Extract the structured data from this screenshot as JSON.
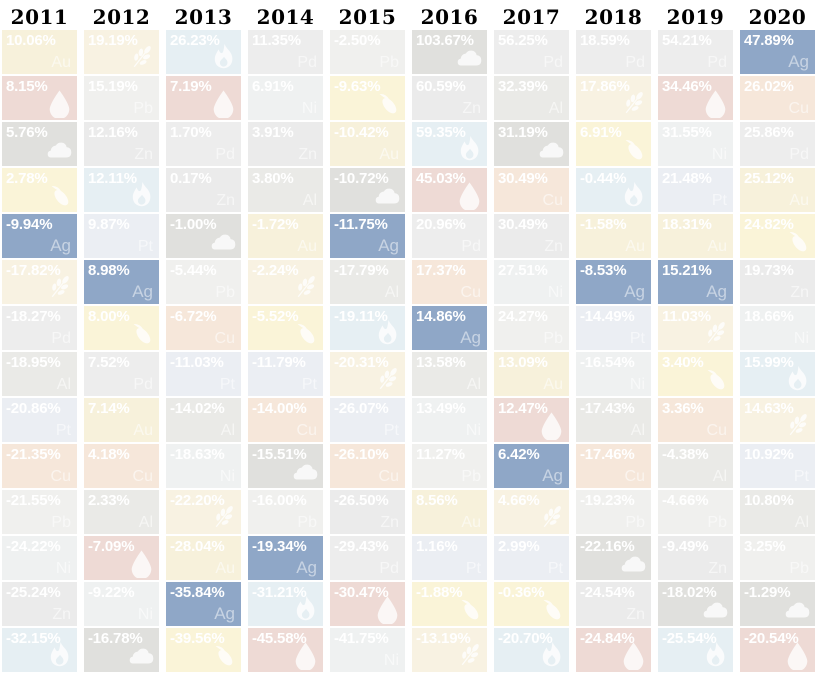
{
  "chart_data": {
    "type": "heatmap",
    "description": "Periodic table of annual commodity returns, ranked best to worst within each year column; silver (Ag) cells highlighted",
    "years": [
      "2011",
      "2012",
      "2013",
      "2014",
      "2015",
      "2016",
      "2017",
      "2018",
      "2019",
      "2020"
    ],
    "highlight_commodity": "silver",
    "highlight_color": "#8fa7c7",
    "commodity_colors": {
      "gold": "#f7f1db",
      "silver": "#8fa7c7",
      "copper": "#f6e7da",
      "aluminum": "#eaeae7",
      "zinc": "#ebebeb",
      "nickel": "#eff1f1",
      "lead": "#f0f0ee",
      "palladium": "#ededed",
      "platinum": "#ebeef3",
      "oil": "#eedad5",
      "natural_gas": "#e6eff3",
      "corn": "#faf4d8",
      "wheat": "#f8f2e2",
      "coal": "#e0e0dd"
    },
    "symbols": {
      "gold": "Au",
      "silver": "Ag",
      "copper": "Cu",
      "aluminum": "Al",
      "zinc": "Zn",
      "nickel": "Ni",
      "lead": "Pb",
      "palladium": "Pd",
      "platinum": "Pt"
    },
    "icons": {
      "oil": "oil-drop-icon",
      "natural_gas": "flame-icon",
      "corn": "corn-icon",
      "wheat": "wheat-icon",
      "coal": "coal-icon"
    },
    "columns": [
      {
        "year": "2011",
        "cells": [
          {
            "value": "10.06%",
            "commodity": "gold"
          },
          {
            "value": "8.15%",
            "commodity": "oil"
          },
          {
            "value": "5.76%",
            "commodity": "coal"
          },
          {
            "value": "2.78%",
            "commodity": "corn"
          },
          {
            "value": "-9.94%",
            "commodity": "silver"
          },
          {
            "value": "-17.82%",
            "commodity": "wheat"
          },
          {
            "value": "-18.27%",
            "commodity": "palladium"
          },
          {
            "value": "-18.95%",
            "commodity": "aluminum"
          },
          {
            "value": "-20.86%",
            "commodity": "platinum"
          },
          {
            "value": "-21.35%",
            "commodity": "copper"
          },
          {
            "value": "-21.55%",
            "commodity": "lead"
          },
          {
            "value": "-24.22%",
            "commodity": "nickel"
          },
          {
            "value": "-25.24%",
            "commodity": "zinc"
          },
          {
            "value": "-32.15%",
            "commodity": "natural_gas"
          }
        ]
      },
      {
        "year": "2012",
        "cells": [
          {
            "value": "19.19%",
            "commodity": "wheat"
          },
          {
            "value": "15.19%",
            "commodity": "lead"
          },
          {
            "value": "12.16%",
            "commodity": "zinc"
          },
          {
            "value": "12.11%",
            "commodity": "natural_gas"
          },
          {
            "value": "9.87%",
            "commodity": "platinum"
          },
          {
            "value": "8.98%",
            "commodity": "silver"
          },
          {
            "value": "8.00%",
            "commodity": "corn"
          },
          {
            "value": "7.52%",
            "commodity": "palladium"
          },
          {
            "value": "7.14%",
            "commodity": "gold"
          },
          {
            "value": "4.18%",
            "commodity": "copper"
          },
          {
            "value": "2.33%",
            "commodity": "aluminum"
          },
          {
            "value": "-7.09%",
            "commodity": "oil"
          },
          {
            "value": "-9.22%",
            "commodity": "nickel"
          },
          {
            "value": "-16.78%",
            "commodity": "coal"
          }
        ]
      },
      {
        "year": "2013",
        "cells": [
          {
            "value": "26.23%",
            "commodity": "natural_gas"
          },
          {
            "value": "7.19%",
            "commodity": "oil"
          },
          {
            "value": "1.70%",
            "commodity": "palladium"
          },
          {
            "value": "0.17%",
            "commodity": "zinc"
          },
          {
            "value": "-1.00%",
            "commodity": "coal"
          },
          {
            "value": "-5.44%",
            "commodity": "lead"
          },
          {
            "value": "-6.72%",
            "commodity": "copper"
          },
          {
            "value": "-11.03%",
            "commodity": "platinum"
          },
          {
            "value": "-14.02%",
            "commodity": "aluminum"
          },
          {
            "value": "-18.63%",
            "commodity": "nickel"
          },
          {
            "value": "-22.20%",
            "commodity": "wheat"
          },
          {
            "value": "-28.04%",
            "commodity": "gold"
          },
          {
            "value": "-35.84%",
            "commodity": "silver"
          },
          {
            "value": "-39.56%",
            "commodity": "corn"
          }
        ]
      },
      {
        "year": "2014",
        "cells": [
          {
            "value": "11.35%",
            "commodity": "palladium"
          },
          {
            "value": "6.91%",
            "commodity": "nickel"
          },
          {
            "value": "3.91%",
            "commodity": "zinc"
          },
          {
            "value": "3.80%",
            "commodity": "aluminum"
          },
          {
            "value": "-1.72%",
            "commodity": "gold"
          },
          {
            "value": "-2.24%",
            "commodity": "wheat"
          },
          {
            "value": "-5.52%",
            "commodity": "corn"
          },
          {
            "value": "-11.79%",
            "commodity": "platinum"
          },
          {
            "value": "-14.00%",
            "commodity": "copper"
          },
          {
            "value": "-15.51%",
            "commodity": "coal"
          },
          {
            "value": "-16.00%",
            "commodity": "lead"
          },
          {
            "value": "-19.34%",
            "commodity": "silver"
          },
          {
            "value": "-31.21%",
            "commodity": "natural_gas"
          },
          {
            "value": "-45.58%",
            "commodity": "oil"
          }
        ]
      },
      {
        "year": "2015",
        "cells": [
          {
            "value": "-2.50%",
            "commodity": "lead"
          },
          {
            "value": "-9.63%",
            "commodity": "corn"
          },
          {
            "value": "-10.42%",
            "commodity": "gold"
          },
          {
            "value": "-10.72%",
            "commodity": "coal"
          },
          {
            "value": "-11.75%",
            "commodity": "silver"
          },
          {
            "value": "-17.79%",
            "commodity": "aluminum"
          },
          {
            "value": "-19.11%",
            "commodity": "natural_gas"
          },
          {
            "value": "-20.31%",
            "commodity": "wheat"
          },
          {
            "value": "-26.07%",
            "commodity": "platinum"
          },
          {
            "value": "-26.10%",
            "commodity": "copper"
          },
          {
            "value": "-26.50%",
            "commodity": "zinc"
          },
          {
            "value": "-29.43%",
            "commodity": "palladium"
          },
          {
            "value": "-30.47%",
            "commodity": "oil"
          },
          {
            "value": "-41.75%",
            "commodity": "nickel"
          }
        ]
      },
      {
        "year": "2016",
        "cells": [
          {
            "value": "103.67%",
            "commodity": "coal"
          },
          {
            "value": "60.59%",
            "commodity": "zinc"
          },
          {
            "value": "59.35%",
            "commodity": "natural_gas"
          },
          {
            "value": "45.03%",
            "commodity": "oil"
          },
          {
            "value": "20.96%",
            "commodity": "palladium"
          },
          {
            "value": "17.37%",
            "commodity": "copper"
          },
          {
            "value": "14.86%",
            "commodity": "silver"
          },
          {
            "value": "13.58%",
            "commodity": "aluminum"
          },
          {
            "value": "13.49%",
            "commodity": "nickel"
          },
          {
            "value": "11.27%",
            "commodity": "lead"
          },
          {
            "value": "8.56%",
            "commodity": "gold"
          },
          {
            "value": "1.16%",
            "commodity": "platinum"
          },
          {
            "value": "-1.88%",
            "commodity": "corn"
          },
          {
            "value": "-13.19%",
            "commodity": "wheat"
          }
        ]
      },
      {
        "year": "2017",
        "cells": [
          {
            "value": "56.25%",
            "commodity": "palladium"
          },
          {
            "value": "32.39%",
            "commodity": "aluminum"
          },
          {
            "value": "31.19%",
            "commodity": "coal"
          },
          {
            "value": "30.49%",
            "commodity": "copper"
          },
          {
            "value": "30.49%",
            "commodity": "zinc"
          },
          {
            "value": "27.51%",
            "commodity": "nickel"
          },
          {
            "value": "24.27%",
            "commodity": "lead"
          },
          {
            "value": "13.09%",
            "commodity": "gold"
          },
          {
            "value": "12.47%",
            "commodity": "oil"
          },
          {
            "value": "6.42%",
            "commodity": "silver"
          },
          {
            "value": "4.66%",
            "commodity": "wheat"
          },
          {
            "value": "2.99%",
            "commodity": "platinum"
          },
          {
            "value": "-0.36%",
            "commodity": "corn"
          },
          {
            "value": "-20.70%",
            "commodity": "natural_gas"
          }
        ]
      },
      {
        "year": "2018",
        "cells": [
          {
            "value": "18.59%",
            "commodity": "palladium"
          },
          {
            "value": "17.86%",
            "commodity": "wheat"
          },
          {
            "value": "6.91%",
            "commodity": "corn"
          },
          {
            "value": "-0.44%",
            "commodity": "natural_gas"
          },
          {
            "value": "-1.58%",
            "commodity": "gold"
          },
          {
            "value": "-8.53%",
            "commodity": "silver"
          },
          {
            "value": "-14.49%",
            "commodity": "platinum"
          },
          {
            "value": "-16.54%",
            "commodity": "nickel"
          },
          {
            "value": "-17.43%",
            "commodity": "aluminum"
          },
          {
            "value": "-17.46%",
            "commodity": "copper"
          },
          {
            "value": "-19.23%",
            "commodity": "lead"
          },
          {
            "value": "-22.16%",
            "commodity": "coal"
          },
          {
            "value": "-24.54%",
            "commodity": "zinc"
          },
          {
            "value": "-24.84%",
            "commodity": "oil"
          }
        ]
      },
      {
        "year": "2019",
        "cells": [
          {
            "value": "54.21%",
            "commodity": "palladium"
          },
          {
            "value": "34.46%",
            "commodity": "oil"
          },
          {
            "value": "31.55%",
            "commodity": "nickel"
          },
          {
            "value": "21.48%",
            "commodity": "platinum"
          },
          {
            "value": "18.31%",
            "commodity": "gold"
          },
          {
            "value": "15.21%",
            "commodity": "silver"
          },
          {
            "value": "11.03%",
            "commodity": "wheat"
          },
          {
            "value": "3.40%",
            "commodity": "corn"
          },
          {
            "value": "3.36%",
            "commodity": "copper"
          },
          {
            "value": "-4.38%",
            "commodity": "aluminum"
          },
          {
            "value": "-4.66%",
            "commodity": "lead"
          },
          {
            "value": "-9.49%",
            "commodity": "zinc"
          },
          {
            "value": "-18.02%",
            "commodity": "coal"
          },
          {
            "value": "-25.54%",
            "commodity": "natural_gas"
          }
        ]
      },
      {
        "year": "2020",
        "cells": [
          {
            "value": "47.89%",
            "commodity": "silver"
          },
          {
            "value": "26.02%",
            "commodity": "copper"
          },
          {
            "value": "25.86%",
            "commodity": "palladium"
          },
          {
            "value": "25.12%",
            "commodity": "gold"
          },
          {
            "value": "24.82%",
            "commodity": "corn"
          },
          {
            "value": "19.73%",
            "commodity": "zinc"
          },
          {
            "value": "18.66%",
            "commodity": "nickel"
          },
          {
            "value": "15.99%",
            "commodity": "natural_gas"
          },
          {
            "value": "14.63%",
            "commodity": "wheat"
          },
          {
            "value": "10.92%",
            "commodity": "platinum"
          },
          {
            "value": "10.80%",
            "commodity": "aluminum"
          },
          {
            "value": "3.25%",
            "commodity": "lead"
          },
          {
            "value": "-1.29%",
            "commodity": "coal"
          },
          {
            "value": "-20.54%",
            "commodity": "oil"
          }
        ]
      }
    ]
  }
}
